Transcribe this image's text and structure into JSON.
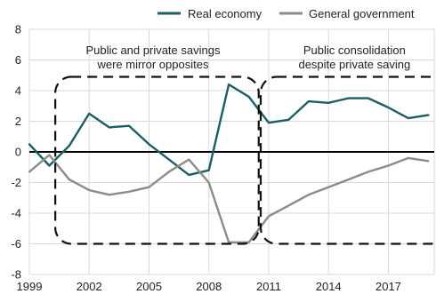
{
  "chart_data": {
    "type": "line",
    "title": "",
    "xlabel": "",
    "ylabel": "",
    "xlim": [
      1999,
      2019.3
    ],
    "ylim": [
      -8,
      8
    ],
    "x_ticks": [
      1999,
      2002,
      2005,
      2008,
      2011,
      2014,
      2017
    ],
    "y_ticks": [
      -8,
      -6,
      -4,
      -2,
      0,
      2,
      4,
      6,
      8
    ],
    "grid": true,
    "legend": "top-right",
    "x": [
      1999,
      2000,
      2001,
      2002,
      2003,
      2004,
      2005,
      2006,
      2007,
      2008,
      2009,
      2010,
      2011,
      2012,
      2013,
      2014,
      2015,
      2016,
      2017,
      2018,
      2019
    ],
    "series": [
      {
        "name": "Real economy",
        "color": "#1b5e63",
        "values": [
          0.5,
          -0.9,
          0.4,
          2.5,
          1.6,
          1.7,
          0.5,
          -0.5,
          -1.5,
          -1.2,
          4.4,
          3.6,
          1.9,
          2.1,
          3.3,
          3.2,
          3.5,
          3.5,
          2.9,
          2.2,
          2.4
        ]
      },
      {
        "name": "General government",
        "color": "#8c8c84",
        "values": [
          -1.3,
          -0.2,
          -1.8,
          -2.5,
          -2.8,
          -2.6,
          -2.3,
          -1.3,
          -0.5,
          -2.0,
          -5.9,
          -5.9,
          -4.2,
          -3.5,
          -2.8,
          -2.3,
          -1.8,
          -1.3,
          -0.9,
          -0.4,
          -0.6
        ]
      }
    ],
    "annotations": [
      {
        "text_lines": [
          "Public and private savings",
          "were mirror opposites"
        ],
        "x_range": [
          2000.3,
          2010.5
        ],
        "y_range": [
          -6,
          4.9
        ]
      },
      {
        "text_lines": [
          "Public consolidation",
          "despite private saving"
        ],
        "x_range": [
          2010.6,
          2019.9
        ],
        "y_range": [
          -6,
          4.9
        ]
      }
    ]
  }
}
